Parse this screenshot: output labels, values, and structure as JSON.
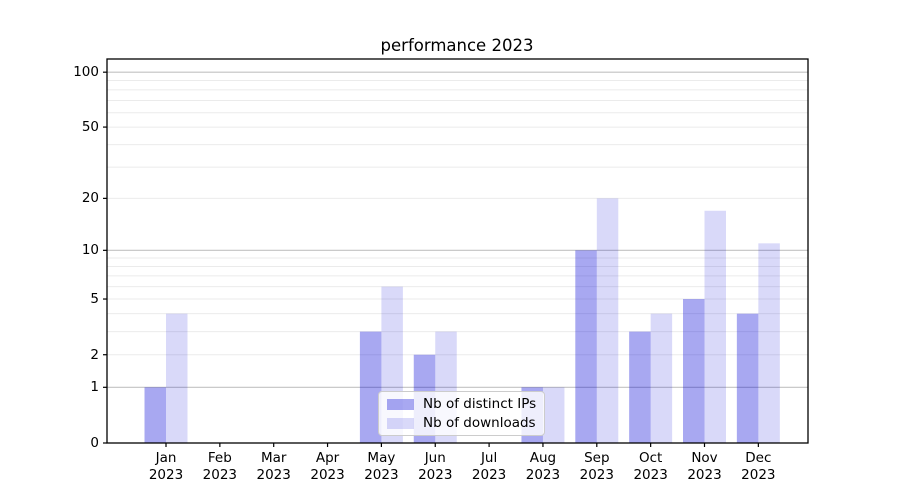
{
  "figure": {
    "background": "#ffffff"
  },
  "chart_data": {
    "type": "bar",
    "title": "performance 2023",
    "categories": [
      "Jan",
      "Feb",
      "Mar",
      "Apr",
      "May",
      "Jun",
      "Jul",
      "Aug",
      "Sep",
      "Oct",
      "Nov",
      "Dec"
    ],
    "year_label": "2023",
    "series": [
      {
        "name": "Nb of distinct IPs",
        "color": "#a9a9f0",
        "fill": "rgba(0,0,215,0.34)",
        "values": [
          1,
          0,
          0,
          0,
          3,
          2,
          0,
          1,
          10,
          3,
          5,
          4
        ]
      },
      {
        "name": "Nb of downloads",
        "color": "#d9d9f9",
        "fill": "rgba(0,0,215,0.15)",
        "values": [
          4,
          0,
          0,
          0,
          6,
          3,
          0,
          1,
          20,
          4,
          17,
          11
        ]
      }
    ],
    "y_axis": {
      "scale": "log1p",
      "ticks": [
        0,
        1,
        2,
        5,
        10,
        20,
        50,
        100
      ],
      "major_gridlines": [
        1,
        10,
        100
      ],
      "minor_gridlines": [
        2,
        3,
        4,
        5,
        6,
        7,
        8,
        9,
        20,
        30,
        40,
        50,
        60,
        70,
        80,
        90
      ],
      "ylim": [
        0,
        118
      ]
    },
    "x_axis": {
      "label_line2": "2023"
    },
    "legend": {
      "position": "lower center"
    },
    "grid": true
  },
  "colors": {
    "axis": "#000000",
    "text": "#000000",
    "major_grid": "#c2c2c2",
    "minor_grid": "#ebebeb",
    "legend_border": "#cccccc"
  }
}
